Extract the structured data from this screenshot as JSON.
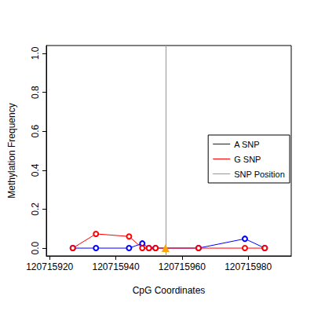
{
  "chart_data": {
    "type": "line",
    "x_label": "CpG Coordinates",
    "y_label": "Methylation Frequency",
    "xlim": [
      120715919,
      120715993
    ],
    "xticks": [
      120715920,
      120715940,
      120715960,
      120715980
    ],
    "ylim": [
      -0.04,
      1.04
    ],
    "yticks": [
      {
        "value": 0,
        "label": "0.0"
      },
      {
        "value": 0.2,
        "label": "0.2"
      },
      {
        "value": 0.4,
        "label": "0.4"
      },
      {
        "value": 0.6,
        "label": "0.6"
      },
      {
        "value": 0.8,
        "label": "0.8"
      },
      {
        "value": 1,
        "label": "1.0"
      }
    ],
    "grid": false,
    "legend": "right",
    "series": [
      {
        "name": "A SNP",
        "color": "#0000ff",
        "marker": "circle",
        "x": [
          120715927,
          120715934,
          120715944,
          120715948,
          120715950,
          120715952,
          120715965,
          120715979,
          120715985
        ],
        "values": [
          0,
          0,
          0,
          0.024,
          0,
          0,
          0,
          0.048,
          0
        ]
      },
      {
        "name": "G SNP",
        "color": "#ff0000",
        "marker": "circle",
        "x": [
          120715927,
          120715934,
          120715944,
          120715948,
          120715950,
          120715952,
          120715965,
          120715979,
          120715985
        ],
        "values": [
          0,
          0.073,
          0.06,
          0,
          0,
          0,
          0,
          0,
          0
        ]
      },
      {
        "name": "SNP Position",
        "type": "vline",
        "color": "#00ff00",
        "marker": "triangle",
        "colors": [
          "#ffa500"
        ],
        "x": [
          120715955
        ],
        "values": [
          0
        ]
      }
    ]
  }
}
